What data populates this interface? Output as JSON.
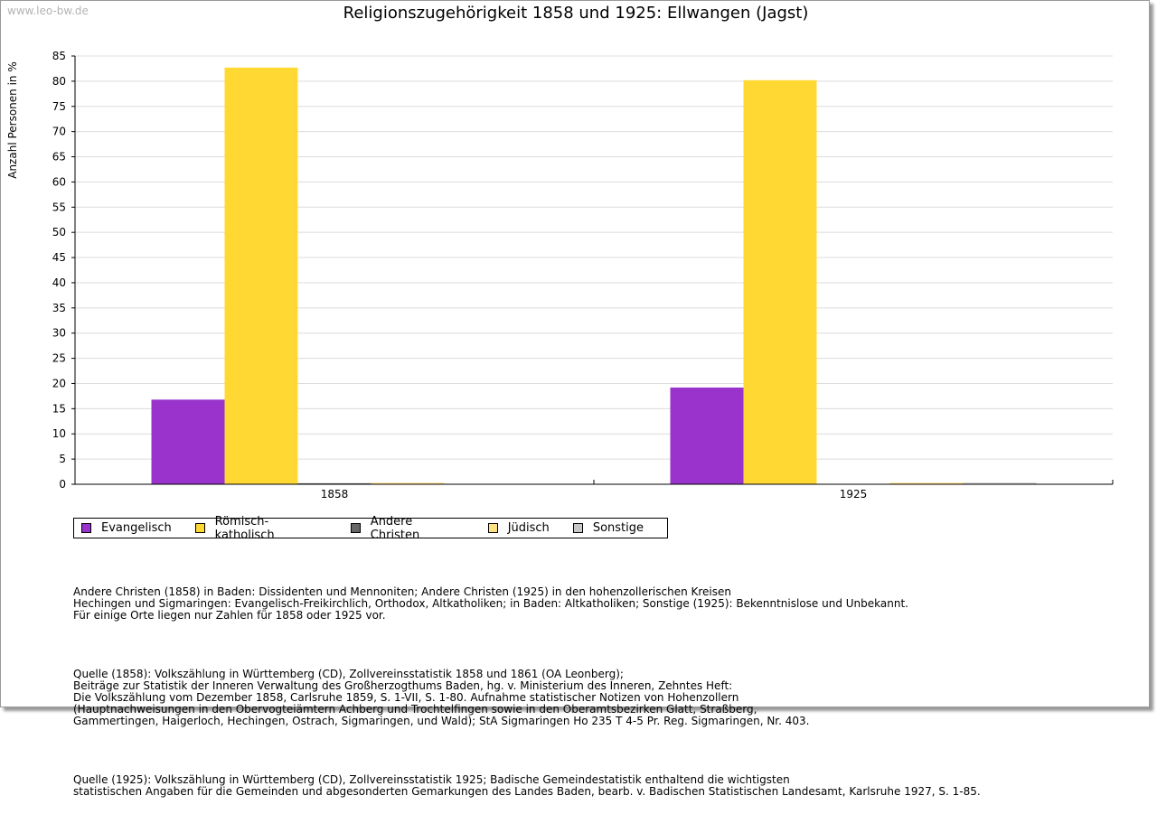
{
  "watermark": "www.leo-bw.de",
  "chart_data": {
    "type": "bar",
    "title": "Religionszugehörigkeit 1858 und 1925: Ellwangen (Jagst)",
    "xlabel": "",
    "ylabel": "Anzahl Personen in %",
    "ylim": [
      0,
      85
    ],
    "yticks": [
      "0",
      "5",
      "10",
      "15",
      "20",
      "25",
      "30",
      "35",
      "40",
      "45",
      "50",
      "55",
      "60",
      "65",
      "70",
      "75",
      "80",
      "85"
    ],
    "grid": true,
    "categories": [
      "1858",
      "1925"
    ],
    "series": [
      {
        "name": "Evangelisch",
        "color": "#9933cc",
        "values": [
          16.8,
          19.2
        ]
      },
      {
        "name": "Römisch-katholisch",
        "color": "#ffd833",
        "values": [
          82.7,
          80.2
        ]
      },
      {
        "name": "Andere Christen",
        "color": "#666666",
        "values": [
          0.2,
          0.0
        ]
      },
      {
        "name": "Jüdisch",
        "color": "#ffe083",
        "values": [
          0.3,
          0.3
        ]
      },
      {
        "name": "Sonstige",
        "color": "#c8c8c8",
        "values": [
          0.0,
          0.3
        ]
      }
    ],
    "legend_position": "bottom-left"
  },
  "notes": {
    "p1": [
      "Andere Christen (1858) in Baden: Dissidenten und Mennoniten; Andere Christen (1925) in den hohenzollerischen Kreisen",
      "Hechingen und Sigmaringen: Evangelisch-Freikirchlich, Orthodox, Altkatholiken; in Baden: Altkatholiken; Sonstige (1925): Bekenntnislose und Unbekannt.",
      "Für einige Orte liegen nur Zahlen für 1858 oder 1925 vor."
    ],
    "p2": [
      "Quelle (1858): Volkszählung in Württemberg (CD), Zollvereinsstatistik 1858 und 1861 (OA Leonberg);",
      "Beiträge zur Statistik der Inneren Verwaltung des Großherzogthums Baden, hg. v. Ministerium des Inneren, Zehntes Heft:",
      "Die Volkszählung vom Dezember 1858, Carlsruhe 1859, S. 1-VII, S. 1-80. Aufnahme statistischer Notizen von Hohenzollern",
      "(Hauptnachweisungen in den Obervogteiämtern Achberg und Trochtelfingen sowie in den Oberamtsbezirken Glatt, Straßberg,",
      "Gammertingen, Haigerloch, Hechingen, Ostrach, Sigmaringen, und Wald); StA Sigmaringen Ho 235 T 4-5 Pr. Reg. Sigmaringen, Nr. 403."
    ],
    "p3": [
      "Quelle (1925): Volkszählung in Württemberg (CD), Zollvereinsstatistik 1925; Badische Gemeindestatistik enthaltend die wichtigsten",
      "statistischen Angaben für die Gemeinden und abgesonderten Gemarkungen des Landes Baden, bearb. v. Badischen Statistischen Landesamt, Karlsruhe 1927, S. 1-85."
    ]
  }
}
